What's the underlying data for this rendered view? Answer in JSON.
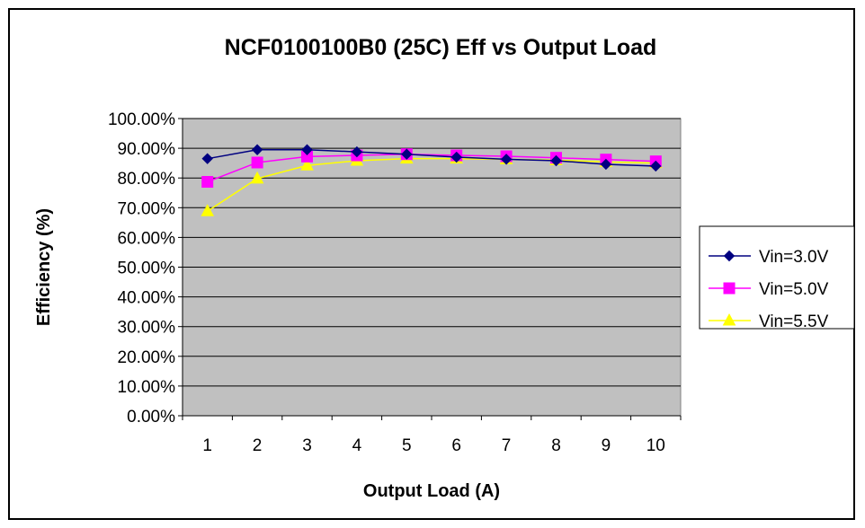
{
  "chart_data": {
    "type": "line",
    "title": "NCF0100100B0 (25C) Eff vs Output Load",
    "xlabel": "Output Load (A)",
    "ylabel": "Efficiency (%)",
    "categories": [
      "1",
      "2",
      "3",
      "4",
      "5",
      "6",
      "7",
      "8",
      "9",
      "10"
    ],
    "ylim": [
      0,
      100
    ],
    "yticks": [
      "0.00%",
      "10.00%",
      "20.00%",
      "30.00%",
      "40.00%",
      "50.00%",
      "60.00%",
      "70.00%",
      "80.00%",
      "90.00%",
      "100.00%"
    ],
    "grid": true,
    "legend_position": "right",
    "plot_background": "#c0c0c0",
    "series": [
      {
        "name": "Vin=3.0V",
        "color": "#000080",
        "marker": "diamond",
        "values": [
          86.5,
          89.5,
          89.5,
          88.8,
          88.0,
          87.0,
          86.3,
          85.8,
          84.6,
          84.0
        ]
      },
      {
        "name": "Vin=5.0V",
        "color": "#ff00ff",
        "marker": "square",
        "values": [
          78.7,
          85.2,
          87.2,
          87.6,
          88.0,
          87.6,
          87.3,
          86.8,
          86.2,
          85.6
        ]
      },
      {
        "name": "Vin=5.5V",
        "color": "#ffff00",
        "marker": "triangle",
        "values": [
          68.8,
          79.8,
          84.2,
          85.8,
          86.5,
          86.5,
          86.3,
          86.0,
          85.4,
          85.0
        ]
      }
    ]
  }
}
